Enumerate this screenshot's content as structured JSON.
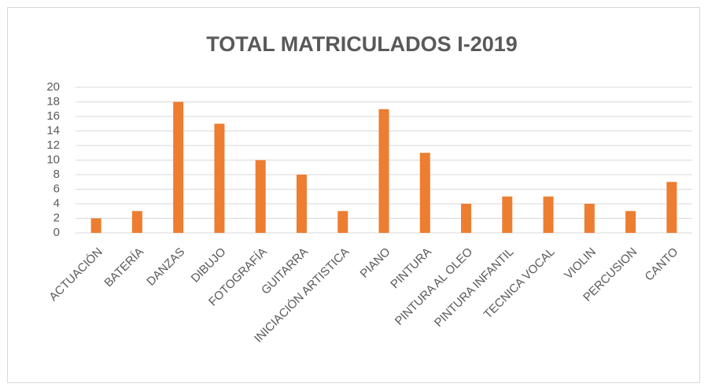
{
  "chart_data": {
    "type": "bar",
    "title": "TOTAL MATRICULADOS I-2019",
    "categories": [
      "ACTUACIÓN",
      "BATERÍA",
      "DANZAS",
      "DIBUJO",
      "FOTOGRAFÍA",
      "GUITARRA",
      "INICIACIÓN ARTISTICA",
      "PIANO",
      "PINTURA",
      "PINTURA AL OLEO",
      "PINTURA INFANTIL",
      "TECNICA VOCAL",
      "VIOLIN",
      "PERCUSION",
      "CANTO"
    ],
    "values": [
      2,
      3,
      18,
      15,
      10,
      8,
      3,
      17,
      11,
      4,
      5,
      5,
      4,
      3,
      7
    ],
    "color": "#ed7d31",
    "ylim": [
      0,
      20
    ],
    "yticks": [
      0,
      2,
      4,
      6,
      8,
      10,
      12,
      14,
      16,
      18,
      20
    ],
    "grid": true
  }
}
